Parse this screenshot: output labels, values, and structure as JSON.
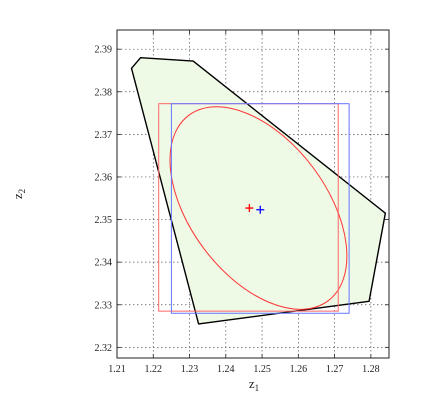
{
  "chart_data": {
    "type": "scatter",
    "xlabel": {
      "base": "z",
      "sub": "1"
    },
    "ylabel": {
      "base": "z",
      "sub": "2"
    },
    "xlim": [
      1.21,
      1.285
    ],
    "ylim": [
      2.3175,
      2.3945
    ],
    "x_ticks": [
      1.21,
      1.22,
      1.23,
      1.24,
      1.25,
      1.26,
      1.27,
      1.28
    ],
    "y_ticks": [
      2.32,
      2.33,
      2.34,
      2.35,
      2.36,
      2.37,
      2.38,
      2.39
    ],
    "x_tick_labels": [
      "1.21",
      "1.22",
      "1.23",
      "1.24",
      "1.25",
      "1.26",
      "1.27",
      "1.28"
    ],
    "y_tick_labels": [
      "2.32",
      "2.33",
      "2.34",
      "2.35",
      "2.36",
      "2.37",
      "2.38",
      "2.39"
    ],
    "grid": true,
    "polygon": {
      "points": [
        [
          1.2165,
          2.388
        ],
        [
          1.231,
          2.3872
        ],
        [
          1.284,
          2.3515
        ],
        [
          1.2795,
          2.3308
        ],
        [
          1.2325,
          2.3255
        ],
        [
          1.214,
          2.3855
        ]
      ],
      "fill": "#eef9e6",
      "stroke": "#000000"
    },
    "red_box": {
      "x": [
        1.2215,
        1.271
      ],
      "y": [
        2.3285,
        2.3772
      ],
      "color": "#ff6666"
    },
    "blue_box": {
      "x": [
        1.225,
        1.274
      ],
      "y": [
        2.328,
        2.3772
      ],
      "color": "#6677ff"
    },
    "ellipse": {
      "center": [
        1.249,
        2.3527
      ],
      "color": "#ff3333"
    },
    "markers": [
      {
        "name": "red",
        "x": 1.2465,
        "y": 2.3527,
        "color": "#ff0000"
      },
      {
        "name": "blue",
        "x": 1.2495,
        "y": 2.3523,
        "color": "#0000ff"
      }
    ]
  }
}
